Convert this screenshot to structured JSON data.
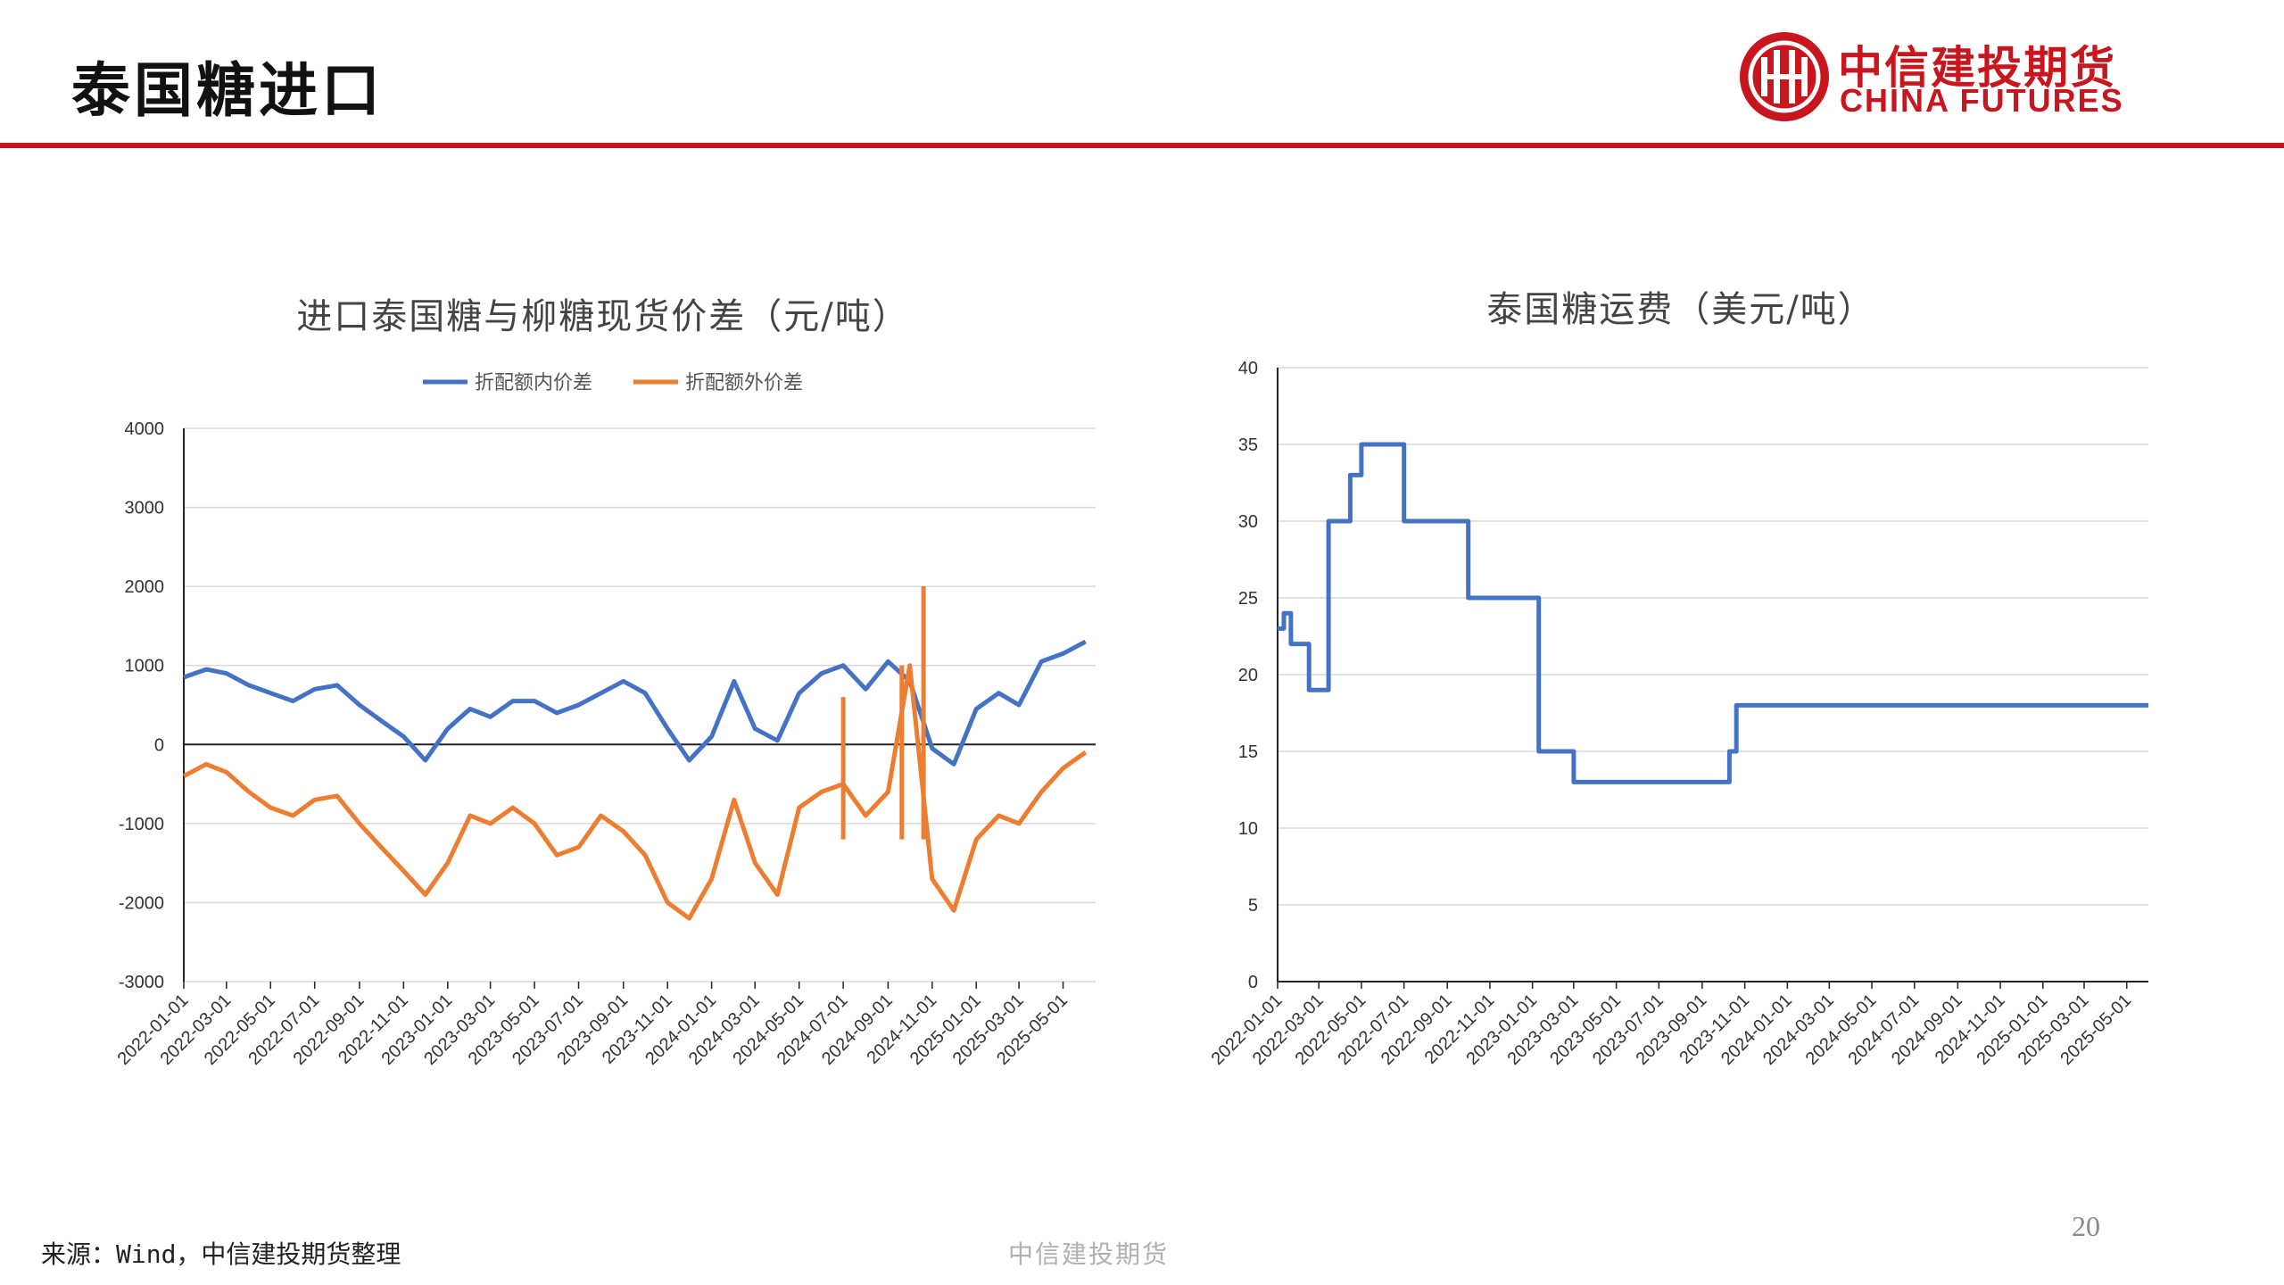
{
  "slide": {
    "title": "泰国糖进口",
    "source": "来源：Wind，中信建投期货整理",
    "footer_center": "中信建投期货",
    "page_number": "20"
  },
  "logo": {
    "cn": "中信建投期货",
    "en": "CHINA FUTURES",
    "color": "#c8161e"
  },
  "colors": {
    "accent": "#c8161e",
    "blue": "#4472c4",
    "orange": "#ed7d31"
  },
  "chart_data": [
    {
      "type": "line",
      "title": "进口泰国糖与柳糖现货价差（元/吨）",
      "xlabel": "",
      "ylabel": "",
      "ylim": [
        -3000,
        4000
      ],
      "yticks": [
        "4000",
        "3000",
        "2000",
        "1000",
        "0",
        "-1000",
        "-2000",
        "-3000"
      ],
      "x_tick_labels": [
        "2022-01-01",
        "2022-03-01",
        "2022-05-01",
        "2022-07-01",
        "2022-09-01",
        "2022-11-01",
        "2023-01-01",
        "2023-03-01",
        "2023-05-01",
        "2023-07-01",
        "2023-09-01",
        "2023-11-01",
        "2024-01-01",
        "2024-03-01",
        "2024-05-01",
        "2024-07-01",
        "2024-09-01",
        "2024-11-01",
        "2025-01-01",
        "2025-03-01",
        "2025-05-01"
      ],
      "grid": true,
      "legend_position": "top",
      "series": [
        {
          "name": "折配额内价差",
          "color": "#4472c4",
          "x": [
            "2022-01-01",
            "2022-02-01",
            "2022-03-01",
            "2022-04-01",
            "2022-05-01",
            "2022-06-01",
            "2022-07-01",
            "2022-08-01",
            "2022-09-01",
            "2022-10-01",
            "2022-11-01",
            "2022-12-01",
            "2023-01-01",
            "2023-02-01",
            "2023-03-01",
            "2023-04-01",
            "2023-05-01",
            "2023-06-01",
            "2023-07-01",
            "2023-08-01",
            "2023-09-01",
            "2023-10-01",
            "2023-11-01",
            "2023-12-01",
            "2024-01-01",
            "2024-02-01",
            "2024-03-01",
            "2024-04-01",
            "2024-05-01",
            "2024-06-01",
            "2024-07-01",
            "2024-08-01",
            "2024-09-01",
            "2024-10-01",
            "2024-11-01",
            "2024-12-01",
            "2025-01-01",
            "2025-02-01",
            "2025-03-01",
            "2025-04-01",
            "2025-05-01",
            "2025-06-01"
          ],
          "values": [
            850,
            950,
            900,
            750,
            650,
            550,
            700,
            750,
            500,
            300,
            100,
            -200,
            200,
            450,
            350,
            550,
            550,
            400,
            500,
            650,
            800,
            650,
            200,
            -200,
            100,
            800,
            200,
            50,
            650,
            900,
            1000,
            700,
            1050,
            800,
            -50,
            -250,
            450,
            650,
            500,
            1050,
            1150,
            1300
          ]
        },
        {
          "name": "折配额外价差",
          "color": "#ed7d31",
          "x": [
            "2022-01-01",
            "2022-02-01",
            "2022-03-01",
            "2022-04-01",
            "2022-05-01",
            "2022-06-01",
            "2022-07-01",
            "2022-08-01",
            "2022-09-01",
            "2022-10-01",
            "2022-11-01",
            "2022-12-01",
            "2023-01-01",
            "2023-02-01",
            "2023-03-01",
            "2023-04-01",
            "2023-05-01",
            "2023-06-01",
            "2023-07-01",
            "2023-08-01",
            "2023-09-01",
            "2023-10-01",
            "2023-11-01",
            "2023-12-01",
            "2024-01-01",
            "2024-02-01",
            "2024-03-01",
            "2024-04-01",
            "2024-05-01",
            "2024-06-01",
            "2024-07-01",
            "2024-08-01",
            "2024-09-01",
            "2024-10-01",
            "2024-11-01",
            "2024-12-01",
            "2025-01-01",
            "2025-02-01",
            "2025-03-01",
            "2025-04-01",
            "2025-05-01",
            "2025-06-01"
          ],
          "values": [
            -400,
            -250,
            -350,
            -600,
            -800,
            -900,
            -700,
            -650,
            -1000,
            -1300,
            -1600,
            -1900,
            -1500,
            -900,
            -1000,
            -800,
            -1000,
            -1400,
            -1300,
            -900,
            -1100,
            -1400,
            -2000,
            -2200,
            -1700,
            -700,
            -1500,
            -1900,
            -800,
            -600,
            -500,
            -900,
            -600,
            1000,
            -1700,
            -2100,
            -1200,
            -900,
            -1000,
            -600,
            -300,
            -100
          ]
        }
      ],
      "annotations": {
        "orange_spikes": [
          {
            "x": "2024-07-01",
            "value": 600
          },
          {
            "x": "2024-09-20",
            "value": 1000
          },
          {
            "x": "2024-10-20",
            "value": 2000
          }
        ]
      }
    },
    {
      "type": "line",
      "title": "泰国糖运费（美元/吨）",
      "xlabel": "",
      "ylabel": "",
      "ylim": [
        0,
        40
      ],
      "yticks": [
        "40",
        "35",
        "30",
        "25",
        "20",
        "15",
        "10",
        "5",
        "0"
      ],
      "x_tick_labels": [
        "2022-01-01",
        "2022-03-01",
        "2022-05-01",
        "2022-07-01",
        "2022-09-01",
        "2022-11-01",
        "2023-01-01",
        "2023-03-01",
        "2023-05-01",
        "2023-07-01",
        "2023-09-01",
        "2023-11-01",
        "2024-01-01",
        "2024-03-01",
        "2024-05-01",
        "2024-07-01",
        "2024-09-01",
        "2024-11-01",
        "2025-01-01",
        "2025-03-01",
        "2025-05-01"
      ],
      "grid": true,
      "series": [
        {
          "color": "#4472c4",
          "x": [
            "2022-01-01",
            "2022-01-10",
            "2022-01-20",
            "2022-02-01",
            "2022-02-15",
            "2022-03-01",
            "2022-03-15",
            "2022-04-01",
            "2022-04-15",
            "2022-05-01",
            "2022-05-15",
            "2022-06-01",
            "2022-07-01",
            "2022-08-01",
            "2022-08-15",
            "2022-10-01",
            "2022-12-01",
            "2023-01-01",
            "2023-01-10",
            "2023-02-01",
            "2023-02-20",
            "2023-03-01",
            "2023-06-01",
            "2023-10-01",
            "2023-10-10",
            "2023-10-20",
            "2024-01-01",
            "2025-06-01"
          ],
          "values": [
            23,
            24,
            22,
            22,
            19,
            19,
            30,
            30,
            33,
            35,
            35,
            35,
            30,
            30,
            30,
            25,
            25,
            25,
            15,
            15,
            15,
            13,
            13,
            13,
            15,
            18,
            18,
            18
          ]
        }
      ]
    }
  ]
}
